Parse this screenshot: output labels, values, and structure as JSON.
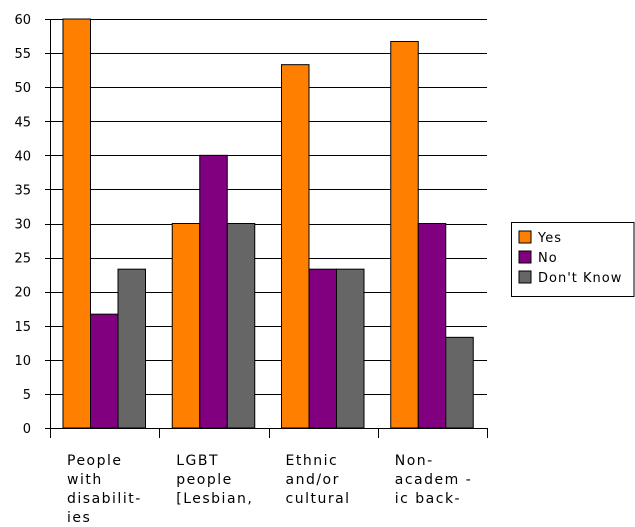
{
  "chart_data": {
    "type": "bar",
    "categories": [
      [
        "People",
        "with",
        "disabilit-",
        "ies"
      ],
      [
        "LGBT",
        "people",
        "[Lesbian,"
      ],
      [
        "Ethnic",
        "and/or",
        "cultural"
      ],
      [
        "Non-",
        "academ -",
        "ic back-"
      ]
    ],
    "series": [
      {
        "name": "Yes",
        "color": "#FF7F00",
        "values": [
          60,
          30,
          53.3,
          56.7
        ]
      },
      {
        "name": "No",
        "color": "#800080",
        "values": [
          16.7,
          40,
          23.3,
          30
        ]
      },
      {
        "name": "Don't Know",
        "color": "#666666",
        "values": [
          23.3,
          30,
          23.3,
          13.3
        ]
      }
    ],
    "y_ticks": [
      "0",
      "5",
      "10",
      "15",
      "20",
      "25",
      "30",
      "35",
      "40",
      "45",
      "50",
      "55",
      "60"
    ],
    "ylim": [
      0,
      60
    ],
    "grid": true,
    "legend_position": "right",
    "title": "",
    "xlabel": "",
    "ylabel": ""
  }
}
